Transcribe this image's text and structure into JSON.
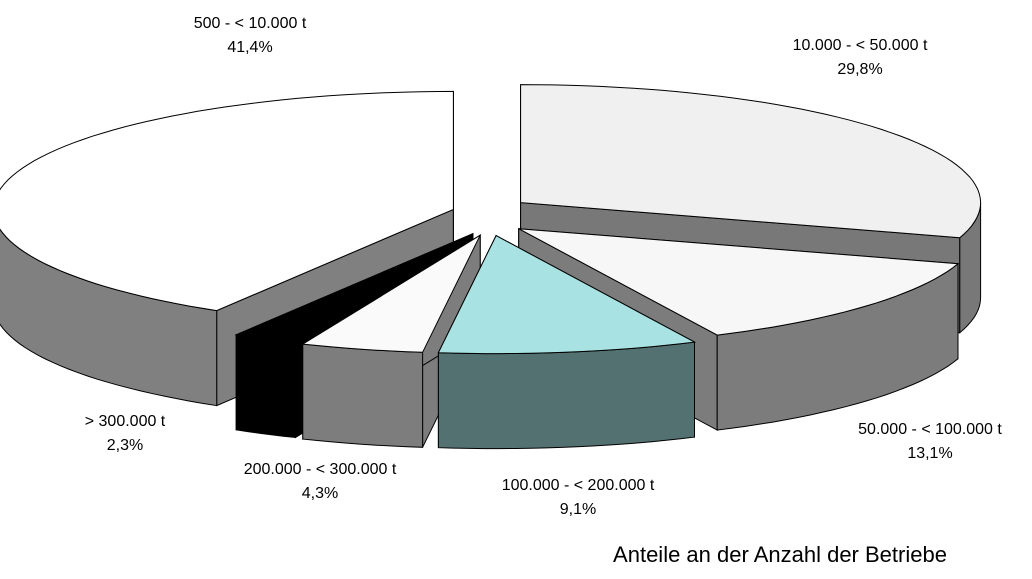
{
  "chart_data": {
    "type": "pie3d",
    "title": "Anteile an der Anzahl der Betriebe",
    "categories": [
      "500 - < 10.000 t",
      "10.000 - < 50.000 t",
      "50.000 - < 100.000 t",
      "100.000 - < 200.000 t",
      "200.000 - < 300.000 t",
      "> 300.000 t"
    ],
    "values": [
      41.4,
      29.8,
      13.1,
      9.1,
      4.3,
      2.3
    ],
    "value_labels": [
      "41,4%",
      "29,8%",
      "13,1%",
      "9,1%",
      "4,3%",
      "2,3%"
    ],
    "colors": [
      "#ffffff",
      "#f0f0f0",
      "#f7f7f7",
      "#a8e2e2",
      "#fafafa",
      "#000000"
    ]
  }
}
